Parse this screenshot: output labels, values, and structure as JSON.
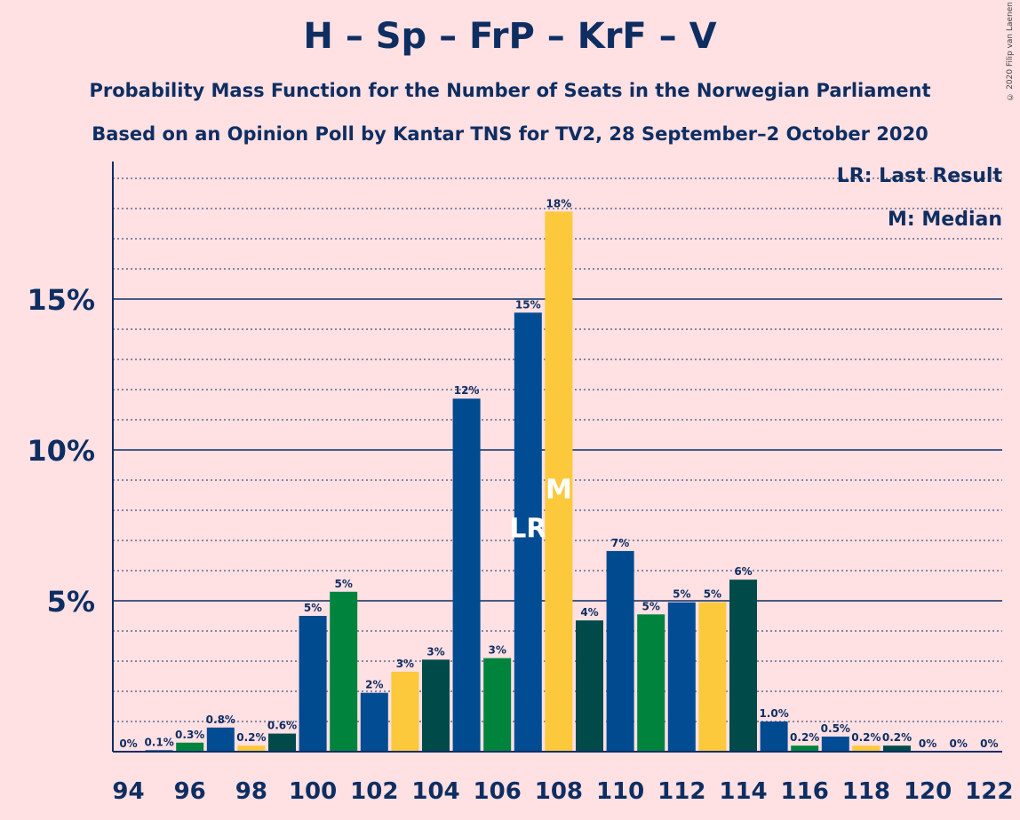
{
  "title": "H – Sp – FrP – KrF – V",
  "subtitle1": "Probability Mass Function for the Number of Seats in the Norwegian Parliament",
  "subtitle2": "Based on an Opinion Poll by Kantar TNS for TV2, 28 September–2 October 2020",
  "copyright": "© 2020 Filip van Laenen",
  "legend": {
    "lr": "LR: Last Result",
    "m": "M: Median"
  },
  "colors": {
    "background": "#FFE0E3",
    "text": "#0E2E62",
    "H": "#004A8F",
    "Sp": "#00843D",
    "FrP": "#024C93",
    "KrF": "#FDC93C",
    "V": "#004A4A"
  },
  "chart_data": {
    "type": "bar",
    "x": [
      94,
      95,
      96,
      97,
      98,
      99,
      100,
      101,
      102,
      103,
      104,
      105,
      106,
      107,
      108,
      109,
      110,
      111,
      112,
      113,
      114,
      115,
      116,
      117,
      118,
      119,
      120,
      121,
      122
    ],
    "values": [
      0,
      0.05,
      0.3,
      0.8,
      0.2,
      0.6,
      4.5,
      5.3,
      1.95,
      2.65,
      3.05,
      11.7,
      3.1,
      14.55,
      17.9,
      4.35,
      6.65,
      4.55,
      4.95,
      4.95,
      5.7,
      1.0,
      0.2,
      0.5,
      0.2,
      0.2,
      0,
      0,
      0
    ],
    "labels": [
      "0%",
      "0.1%",
      "0.3%",
      "0.8%",
      "0.2%",
      "0.6%",
      "5%",
      "5%",
      "2%",
      "3%",
      "3%",
      "12%",
      "3%",
      "15%",
      "18%",
      "4%",
      "7%",
      "5%",
      "5%",
      "5%",
      "6%",
      "1.0%",
      "0.2%",
      "0.5%",
      "0.2%",
      "0.2%",
      "0%",
      "0%",
      "0%"
    ],
    "bar_colors": [
      "#004A8F",
      "#004A8F",
      "#00843D",
      "#024C93",
      "#FDC93C",
      "#004A4A",
      "#004A8F",
      "#00843D",
      "#024C93",
      "#FDC93C",
      "#004A4A",
      "#004A8F",
      "#00843D",
      "#024C93",
      "#FDC93C",
      "#004A4A",
      "#004A8F",
      "#00843D",
      "#024C93",
      "#FDC93C",
      "#004A4A",
      "#004A8F",
      "#00843D",
      "#024C93",
      "#FDC93C",
      "#004A4A",
      "#004A8F",
      "#00843D",
      "#024C93"
    ],
    "x_tick_labels": [
      "94",
      "96",
      "98",
      "100",
      "102",
      "104",
      "106",
      "108",
      "110",
      "112",
      "114",
      "116",
      "118",
      "120",
      "122"
    ],
    "y_ticks": [
      5,
      10,
      15
    ],
    "y_tick_labels": [
      "5%",
      "10%",
      "15%"
    ],
    "ylim": [
      0,
      19.5
    ],
    "last_result": {
      "seat": 107,
      "label": "LR"
    },
    "median": {
      "seat": 108,
      "label": "M"
    },
    "grid": "dotted minor every 1%, solid major every 5%"
  }
}
